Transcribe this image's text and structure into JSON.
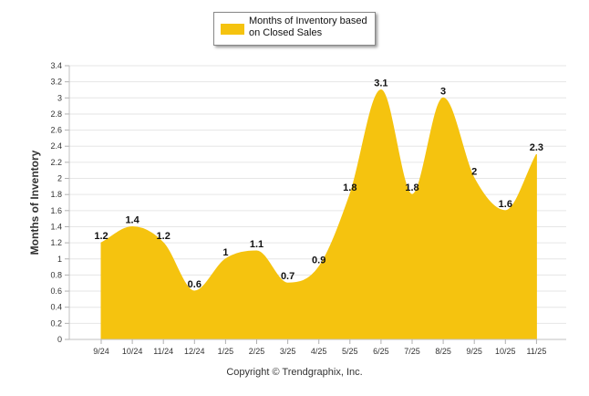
{
  "legend": {
    "label": "Months of Inventory based on Closed Sales",
    "color": "#F5C30F"
  },
  "chart_data": {
    "type": "area",
    "title": "",
    "xlabel": "",
    "ylabel": "Months of Inventory",
    "categories": [
      "9/24",
      "10/24",
      "11/24",
      "12/24",
      "1/25",
      "2/25",
      "3/25",
      "4/25",
      "5/25",
      "6/25",
      "7/25",
      "8/25",
      "9/25",
      "10/25",
      "11/25"
    ],
    "series": [
      {
        "name": "Months of Inventory based on Closed Sales",
        "values": [
          1.2,
          1.4,
          1.2,
          0.6,
          1,
          1.1,
          0.7,
          0.9,
          1.8,
          3.1,
          1.8,
          3,
          2,
          1.6,
          2.3
        ],
        "labels": [
          "1.2",
          "1.4",
          "1.2",
          "0.6",
          "1",
          "1.1",
          "0.7",
          "0.9",
          "1.8",
          "3.1",
          "1.8",
          "3",
          "2",
          "1.6",
          "2.3"
        ]
      }
    ],
    "ylim": [
      0,
      3.4
    ],
    "yticks": [
      "0",
      "0.2",
      "0.4",
      "0.6",
      "0.8",
      "1",
      "1.2",
      "1.4",
      "1.6",
      "1.8",
      "2",
      "2.2",
      "2.4",
      "2.6",
      "2.8",
      "3",
      "3.2",
      "3.4"
    ],
    "grid": true,
    "smooth": true,
    "fill_color": "#F5C30F",
    "legend_position": "top-center"
  },
  "footer": {
    "copyright": "Copyright © Trendgraphix, Inc."
  }
}
